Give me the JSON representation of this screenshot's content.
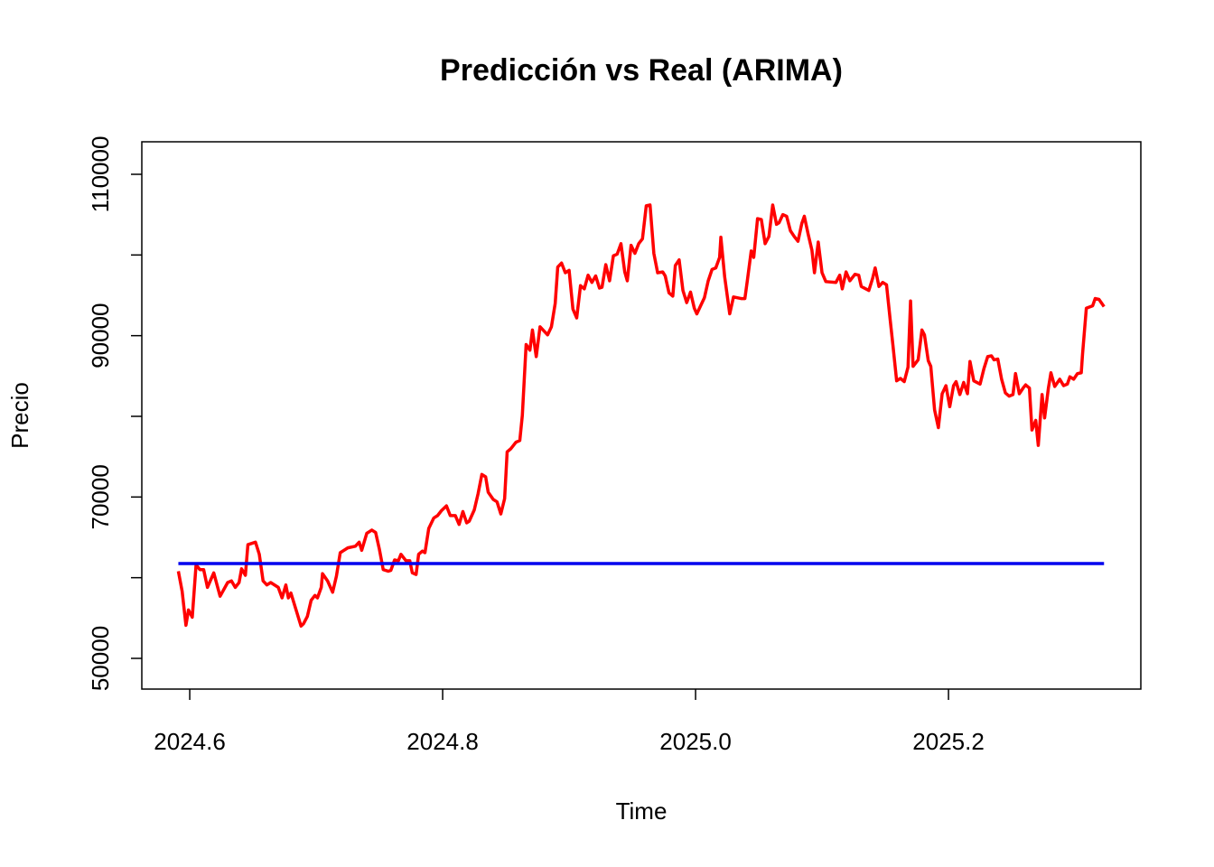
{
  "chart_data": {
    "type": "line",
    "title": "Predicción vs Real (ARIMA)",
    "xlabel": "Time",
    "ylabel": "Precio",
    "xlim": [
      2024.5621,
      2025.3521
    ],
    "ylim": [
      46193,
      114030
    ],
    "xticks": [
      2024.6,
      2024.8,
      {
        "value": 2025,
        "label": "2025.0"
      },
      2025.2
    ],
    "yticks": [
      50000,
      {
        "value": 60000,
        "label": null
      },
      70000,
      {
        "value": 80000,
        "label": null
      },
      90000,
      {
        "value": 100000,
        "label": null
      },
      110000
    ],
    "grid": false,
    "series": [
      {
        "color": "#ff0000",
        "x": [
          2024.591,
          2024.594,
          2024.597,
          2024.599,
          2024.602,
          2024.605,
          2024.608,
          2024.611,
          2024.614,
          2024.619,
          2024.624,
          2024.63,
          2024.633,
          2024.636,
          2024.639,
          2024.641,
          2024.644,
          2024.646,
          2024.652,
          2024.655,
          2024.658,
          2024.661,
          2024.664,
          2024.67,
          2024.673,
          2024.676,
          2024.678,
          2024.68,
          2024.688,
          2024.69,
          2024.693,
          2024.696,
          2024.699,
          2024.701,
          2024.704,
          2024.705,
          2024.709,
          2024.713,
          2024.716,
          2024.719,
          2024.725,
          2024.731,
          2024.734,
          2024.736,
          2024.74,
          2024.744,
          2024.747,
          2024.75,
          2024.753,
          2024.757,
          2024.759,
          2024.762,
          2024.765,
          2024.767,
          2024.771,
          2024.774,
          2024.776,
          2024.779,
          2024.781,
          2024.784,
          2024.786,
          2024.789,
          2024.793,
          2024.796,
          2024.799,
          2024.803,
          2024.806,
          2024.81,
          2024.813,
          2024.816,
          2024.819,
          2024.821,
          2024.825,
          2024.828,
          2024.831,
          2024.834,
          2024.836,
          2024.84,
          2024.843,
          2024.846,
          2024.849,
          2024.851,
          2024.854,
          2024.858,
          2024.861,
          2024.863,
          2024.866,
          2024.869,
          2024.871,
          2024.874,
          2024.877,
          2024.883,
          2024.886,
          2024.889,
          2024.891,
          2024.894,
          2024.897,
          2024.9,
          2024.903,
          2024.906,
          2024.909,
          2024.912,
          2024.915,
          2024.918,
          2024.921,
          2024.924,
          2024.926,
          2024.929,
          2024.932,
          2024.935,
          2024.938,
          2024.941,
          2024.944,
          2024.946,
          2024.949,
          2024.952,
          2024.955,
          2024.958,
          2024.961,
          2024.964,
          2024.967,
          2024.97,
          2024.974,
          2024.976,
          2024.979,
          2024.982,
          2024.984,
          2024.987,
          2024.99,
          2024.993,
          2024.996,
          2024.999,
          2025.001,
          2025.007,
          2025.01,
          2025.013,
          2025.016,
          2025.019,
          2025.02,
          2025.023,
          2025.027,
          2025.03,
          2025.036,
          2025.039,
          2025.041,
          2025.044,
          2025.046,
          2025.049,
          2025.052,
          2025.055,
          2025.058,
          2025.061,
          2025.064,
          2025.066,
          2025.069,
          2025.072,
          2025.075,
          2025.078,
          2025.081,
          2025.084,
          2025.086,
          2025.089,
          2025.092,
          2025.094,
          2025.097,
          2025.1,
          2025.103,
          2025.111,
          2025.114,
          2025.116,
          2025.119,
          2025.122,
          2025.126,
          2025.129,
          2025.131,
          2025.137,
          2025.14,
          2025.142,
          2025.145,
          2025.148,
          2025.151,
          2025.154,
          2025.156,
          2025.159,
          2025.162,
          2025.165,
          2025.168,
          2025.17,
          2025.172,
          2025.176,
          2025.179,
          2025.181,
          2025.184,
          2025.186,
          2025.189,
          2025.192,
          2025.195,
          2025.198,
          2025.201,
          2025.204,
          2025.206,
          2025.209,
          2025.212,
          2025.215,
          2025.217,
          2025.22,
          2025.225,
          2025.228,
          2025.231,
          2025.234,
          2025.236,
          2025.239,
          2025.242,
          2025.245,
          2025.248,
          2025.251,
          2025.253,
          2025.256,
          2025.259,
          2025.261,
          2025.264,
          2025.266,
          2025.269,
          2025.271,
          2025.274,
          2025.276,
          2025.279,
          2025.281,
          2025.284,
          2025.288,
          2025.291,
          2025.294,
          2025.296,
          2025.299,
          2025.302,
          2025.305,
          2025.306,
          2025.309,
          2025.314,
          2025.316,
          2025.319,
          2025.323
        ],
        "values": [
          60800,
          58300,
          54100,
          56000,
          55100,
          61600,
          61000,
          61000,
          58800,
          60600,
          57700,
          59400,
          59600,
          58800,
          59400,
          61100,
          60300,
          64100,
          64400,
          62900,
          59600,
          59100,
          59400,
          58800,
          57500,
          59100,
          57500,
          58100,
          54000,
          54300,
          55200,
          57200,
          57800,
          57500,
          58800,
          60500,
          59600,
          58200,
          60200,
          63100,
          63700,
          63900,
          64400,
          63400,
          65500,
          65900,
          65600,
          63500,
          61000,
          60800,
          60900,
          62200,
          62100,
          62900,
          62100,
          62100,
          60600,
          60400,
          62900,
          63300,
          63100,
          66100,
          67400,
          67700,
          68300,
          68900,
          67700,
          67700,
          66600,
          68200,
          66800,
          67000,
          68400,
          70400,
          72800,
          72500,
          70600,
          69700,
          69400,
          67900,
          69800,
          75600,
          76000,
          76800,
          77000,
          80100,
          88900,
          88200,
          90700,
          87400,
          91100,
          90100,
          91100,
          94000,
          98500,
          99000,
          97800,
          98100,
          93300,
          92200,
          96200,
          95800,
          97500,
          96600,
          97400,
          95900,
          96000,
          98800,
          96800,
          99900,
          100100,
          101400,
          97900,
          96800,
          101200,
          100200,
          101400,
          102000,
          106100,
          106200,
          100200,
          97800,
          97900,
          97400,
          95300,
          94900,
          98700,
          99400,
          95600,
          94100,
          95400,
          93400,
          92700,
          94700,
          96800,
          98200,
          98400,
          99700,
          102200,
          97300,
          92700,
          94800,
          94600,
          94600,
          96900,
          100500,
          99700,
          104500,
          104400,
          101400,
          102300,
          106200,
          103800,
          104000,
          105000,
          104800,
          103000,
          102300,
          101700,
          103900,
          104800,
          102600,
          100600,
          97800,
          101600,
          97800,
          96700,
          96600,
          97500,
          95800,
          97900,
          96800,
          97600,
          97500,
          96100,
          95600,
          97100,
          98400,
          96100,
          96600,
          96300,
          91800,
          88900,
          84400,
          84700,
          84300,
          86100,
          94300,
          86200,
          87000,
          90700,
          90100,
          86900,
          86200,
          80800,
          78600,
          82800,
          83800,
          81200,
          83800,
          84300,
          82700,
          84200,
          82800,
          86800,
          84400,
          84000,
          85900,
          87400,
          87500,
          87000,
          87100,
          84600,
          82900,
          82500,
          82700,
          85300,
          82800,
          83500,
          83900,
          83500,
          78300,
          79500,
          76400,
          82700,
          79800,
          83500,
          85400,
          83700,
          84600,
          83800,
          84000,
          84900,
          84600,
          85300,
          85400,
          87700,
          93400,
          93700,
          94600,
          94500,
          93600
        ]
      },
      {
        "color": "#0000ee",
        "x": [
          2024.591,
          2025.323
        ],
        "values": [
          61760,
          61760
        ]
      }
    ]
  }
}
